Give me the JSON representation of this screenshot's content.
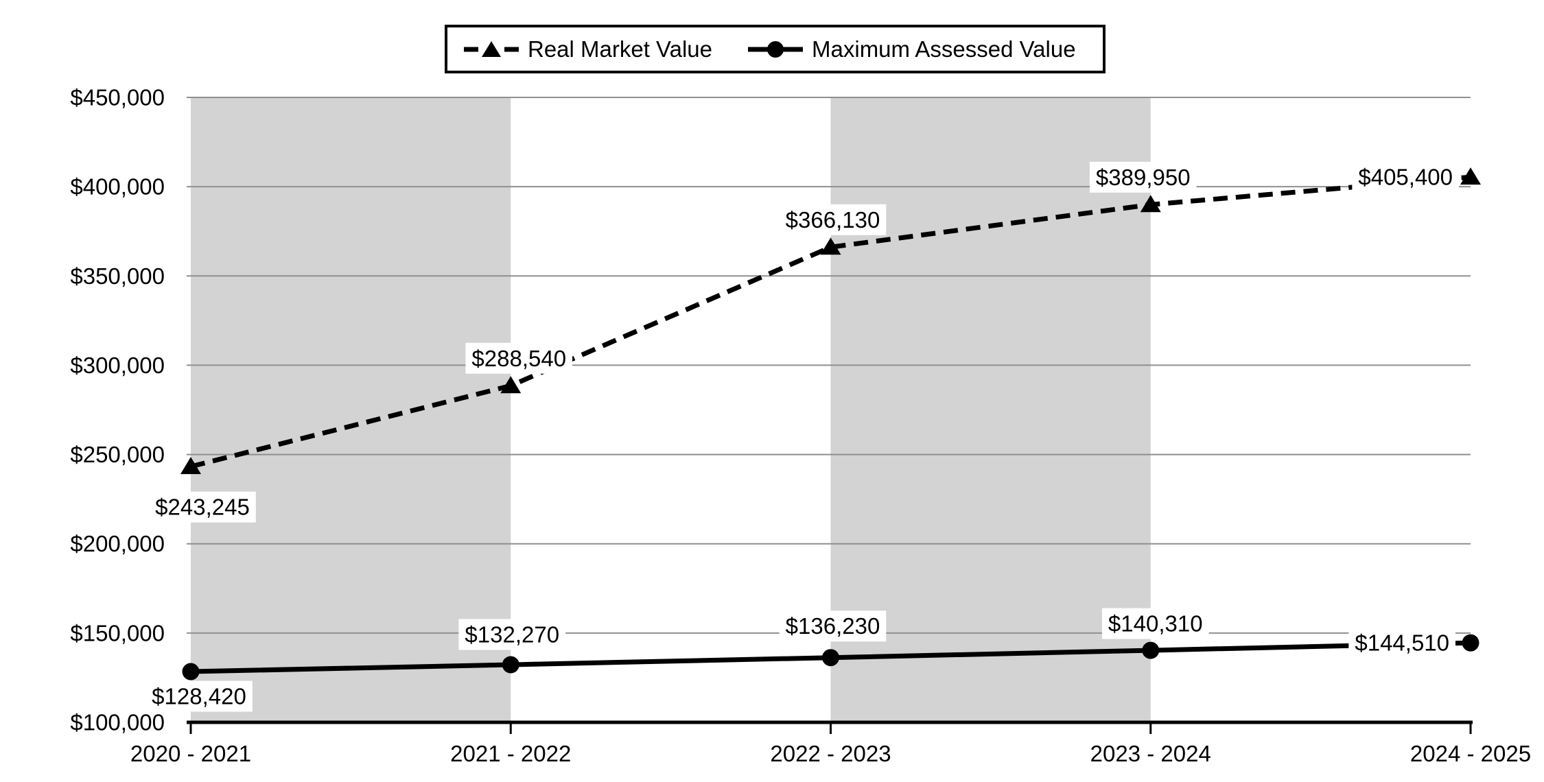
{
  "legend": {
    "position": "top-center",
    "items": [
      {
        "label": "Real Market Value"
      },
      {
        "label": "Maximum Assessed Value"
      }
    ]
  },
  "chart_data": {
    "type": "line",
    "title": "",
    "xlabel": "",
    "ylabel": "",
    "categories": [
      "2020 - 2021",
      "2021 - 2022",
      "2022 - 2023",
      "2023 - 2024",
      "2024 - 2025"
    ],
    "series": [
      {
        "name": "Real Market Value",
        "line_style": "dashed",
        "marker": "triangle",
        "values": [
          243245,
          288540,
          366130,
          389950,
          405400
        ],
        "point_labels": [
          "$243,245",
          "$288,540",
          "$366,130",
          "$389,950",
          "$405,400"
        ]
      },
      {
        "name": "Maximum Assessed Value",
        "line_style": "solid",
        "marker": "circle",
        "values": [
          128420,
          132270,
          136230,
          140310,
          144510
        ],
        "point_labels": [
          "$128,420",
          "$132,270",
          "$136,230",
          "$140,310",
          "$144,510"
        ]
      }
    ],
    "ylim": [
      100000,
      450000
    ],
    "y_tick_step": 50000,
    "y_ticks": [
      450000,
      400000,
      350000,
      300000,
      250000,
      200000,
      150000,
      100000
    ],
    "y_tick_labels": [
      "$450,000",
      "$400,000",
      "$350,000",
      "$300,000",
      "$250,000",
      "$200,000",
      "$150,000",
      "$100,000"
    ],
    "grid": true,
    "legend_position": "top-center",
    "shaded_column_intervals": [
      0,
      2
    ],
    "colors": {
      "band": "#d3d3d3",
      "gridline": "#8f8f8f",
      "series": "#000000",
      "background": "#ffffff",
      "label_background": "#ffffff",
      "text": "#000000"
    }
  }
}
